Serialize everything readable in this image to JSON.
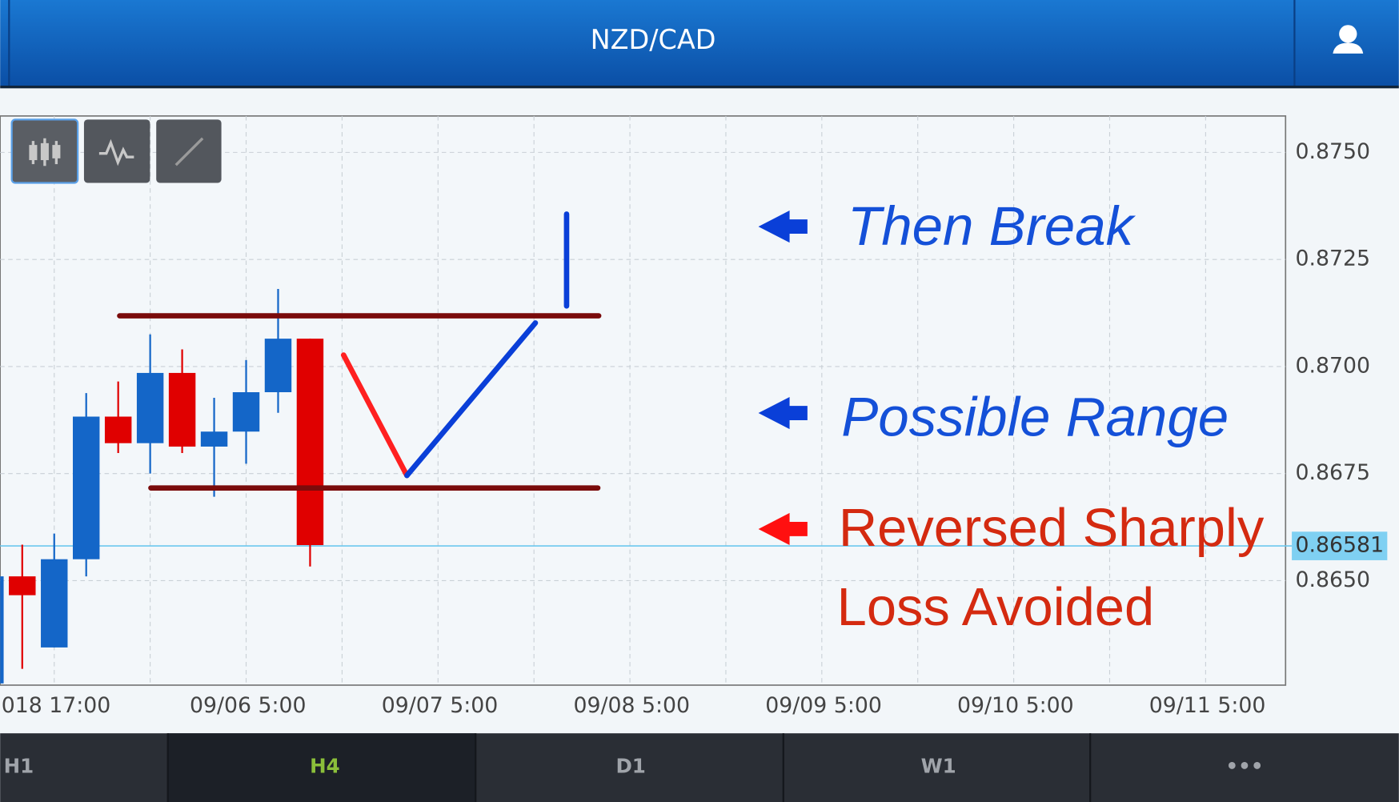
{
  "header": {
    "title": "NZD/CAD"
  },
  "chart_data": {
    "type": "candlestick",
    "categories": [
      null,
      null,
      "018 17:00",
      null,
      null,
      null,
      null,
      null,
      "09/06 5:00",
      null,
      null,
      null,
      null,
      null,
      "09/07 5:00",
      null,
      null,
      null,
      null,
      null,
      "09/08 5:00",
      null,
      null,
      null,
      null,
      null,
      "09/09 5:00",
      null,
      null,
      null,
      null,
      null,
      "09/10 5:00",
      null,
      null,
      null,
      null,
      null,
      "09/11 5:00",
      null,
      null
    ],
    "open": [
      0.8626,
      0.8651,
      0.86344,
      0.8655,
      0.86883,
      0.86821,
      0.86985,
      0.86813,
      0.86848,
      0.8694,
      0.87065,
      null,
      null,
      null,
      null,
      null,
      null,
      null,
      null,
      null,
      null,
      null,
      null,
      null,
      null,
      null,
      null,
      null,
      null,
      null,
      null,
      null,
      null,
      null,
      null,
      null,
      null,
      null,
      null,
      null,
      null
    ],
    "high": [
      0.8651,
      0.86584,
      0.8661,
      0.86938,
      0.86965,
      0.87075,
      0.8704,
      0.86927,
      0.87015,
      0.87181,
      0.87065,
      null,
      null,
      null,
      null,
      null,
      null,
      null,
      null,
      null,
      null,
      null,
      null,
      null,
      null,
      null,
      null,
      null,
      null,
      null,
      null,
      null,
      null,
      null,
      null,
      null,
      null,
      null,
      null,
      null,
      null
    ],
    "low": [
      0.8626,
      0.86294,
      0.86344,
      0.8651,
      0.86798,
      0.8675,
      0.86798,
      0.86696,
      0.86773,
      0.86892,
      0.86533,
      null,
      null,
      null,
      null,
      null,
      null,
      null,
      null,
      null,
      null,
      null,
      null,
      null,
      null,
      null,
      null,
      null,
      null,
      null,
      null,
      null,
      null,
      null,
      null,
      null,
      null,
      null,
      null,
      null,
      null
    ],
    "close": [
      0.8651,
      0.86466,
      0.8655,
      0.86883,
      0.86821,
      0.86985,
      0.86813,
      0.86848,
      0.8694,
      0.87065,
      0.86583,
      null,
      null,
      null,
      null,
      null,
      null,
      null,
      null,
      null,
      null,
      null,
      null,
      null,
      null,
      null,
      null,
      null,
      null,
      null,
      null,
      null,
      null,
      null,
      null,
      null,
      null,
      null,
      null,
      null,
      null
    ],
    "up_color": "#1466c8",
    "down_color": "#e00000",
    "ylim": [
      0.86256,
      0.87585
    ],
    "yticks": [
      {
        "value": 0.865,
        "label": "0.8650"
      },
      0.8675,
      {
        "value": 0.87,
        "label": "0.8700"
      },
      0.8725,
      {
        "value": 0.875,
        "label": "0.8750"
      }
    ],
    "current_price": 0.86581,
    "grid": true,
    "annotations": [
      {
        "text": "Then Break",
        "color": "#1450d8"
      },
      {
        "text": "Possible Range",
        "color": "#1450d8"
      },
      {
        "text": "Reversed Sharply",
        "color": "#d42a10"
      },
      {
        "text": "Loss Avoided",
        "color": "#d42a10"
      }
    ]
  },
  "tabs": [
    "H1",
    "H4",
    "D1",
    "W1",
    "•••"
  ]
}
